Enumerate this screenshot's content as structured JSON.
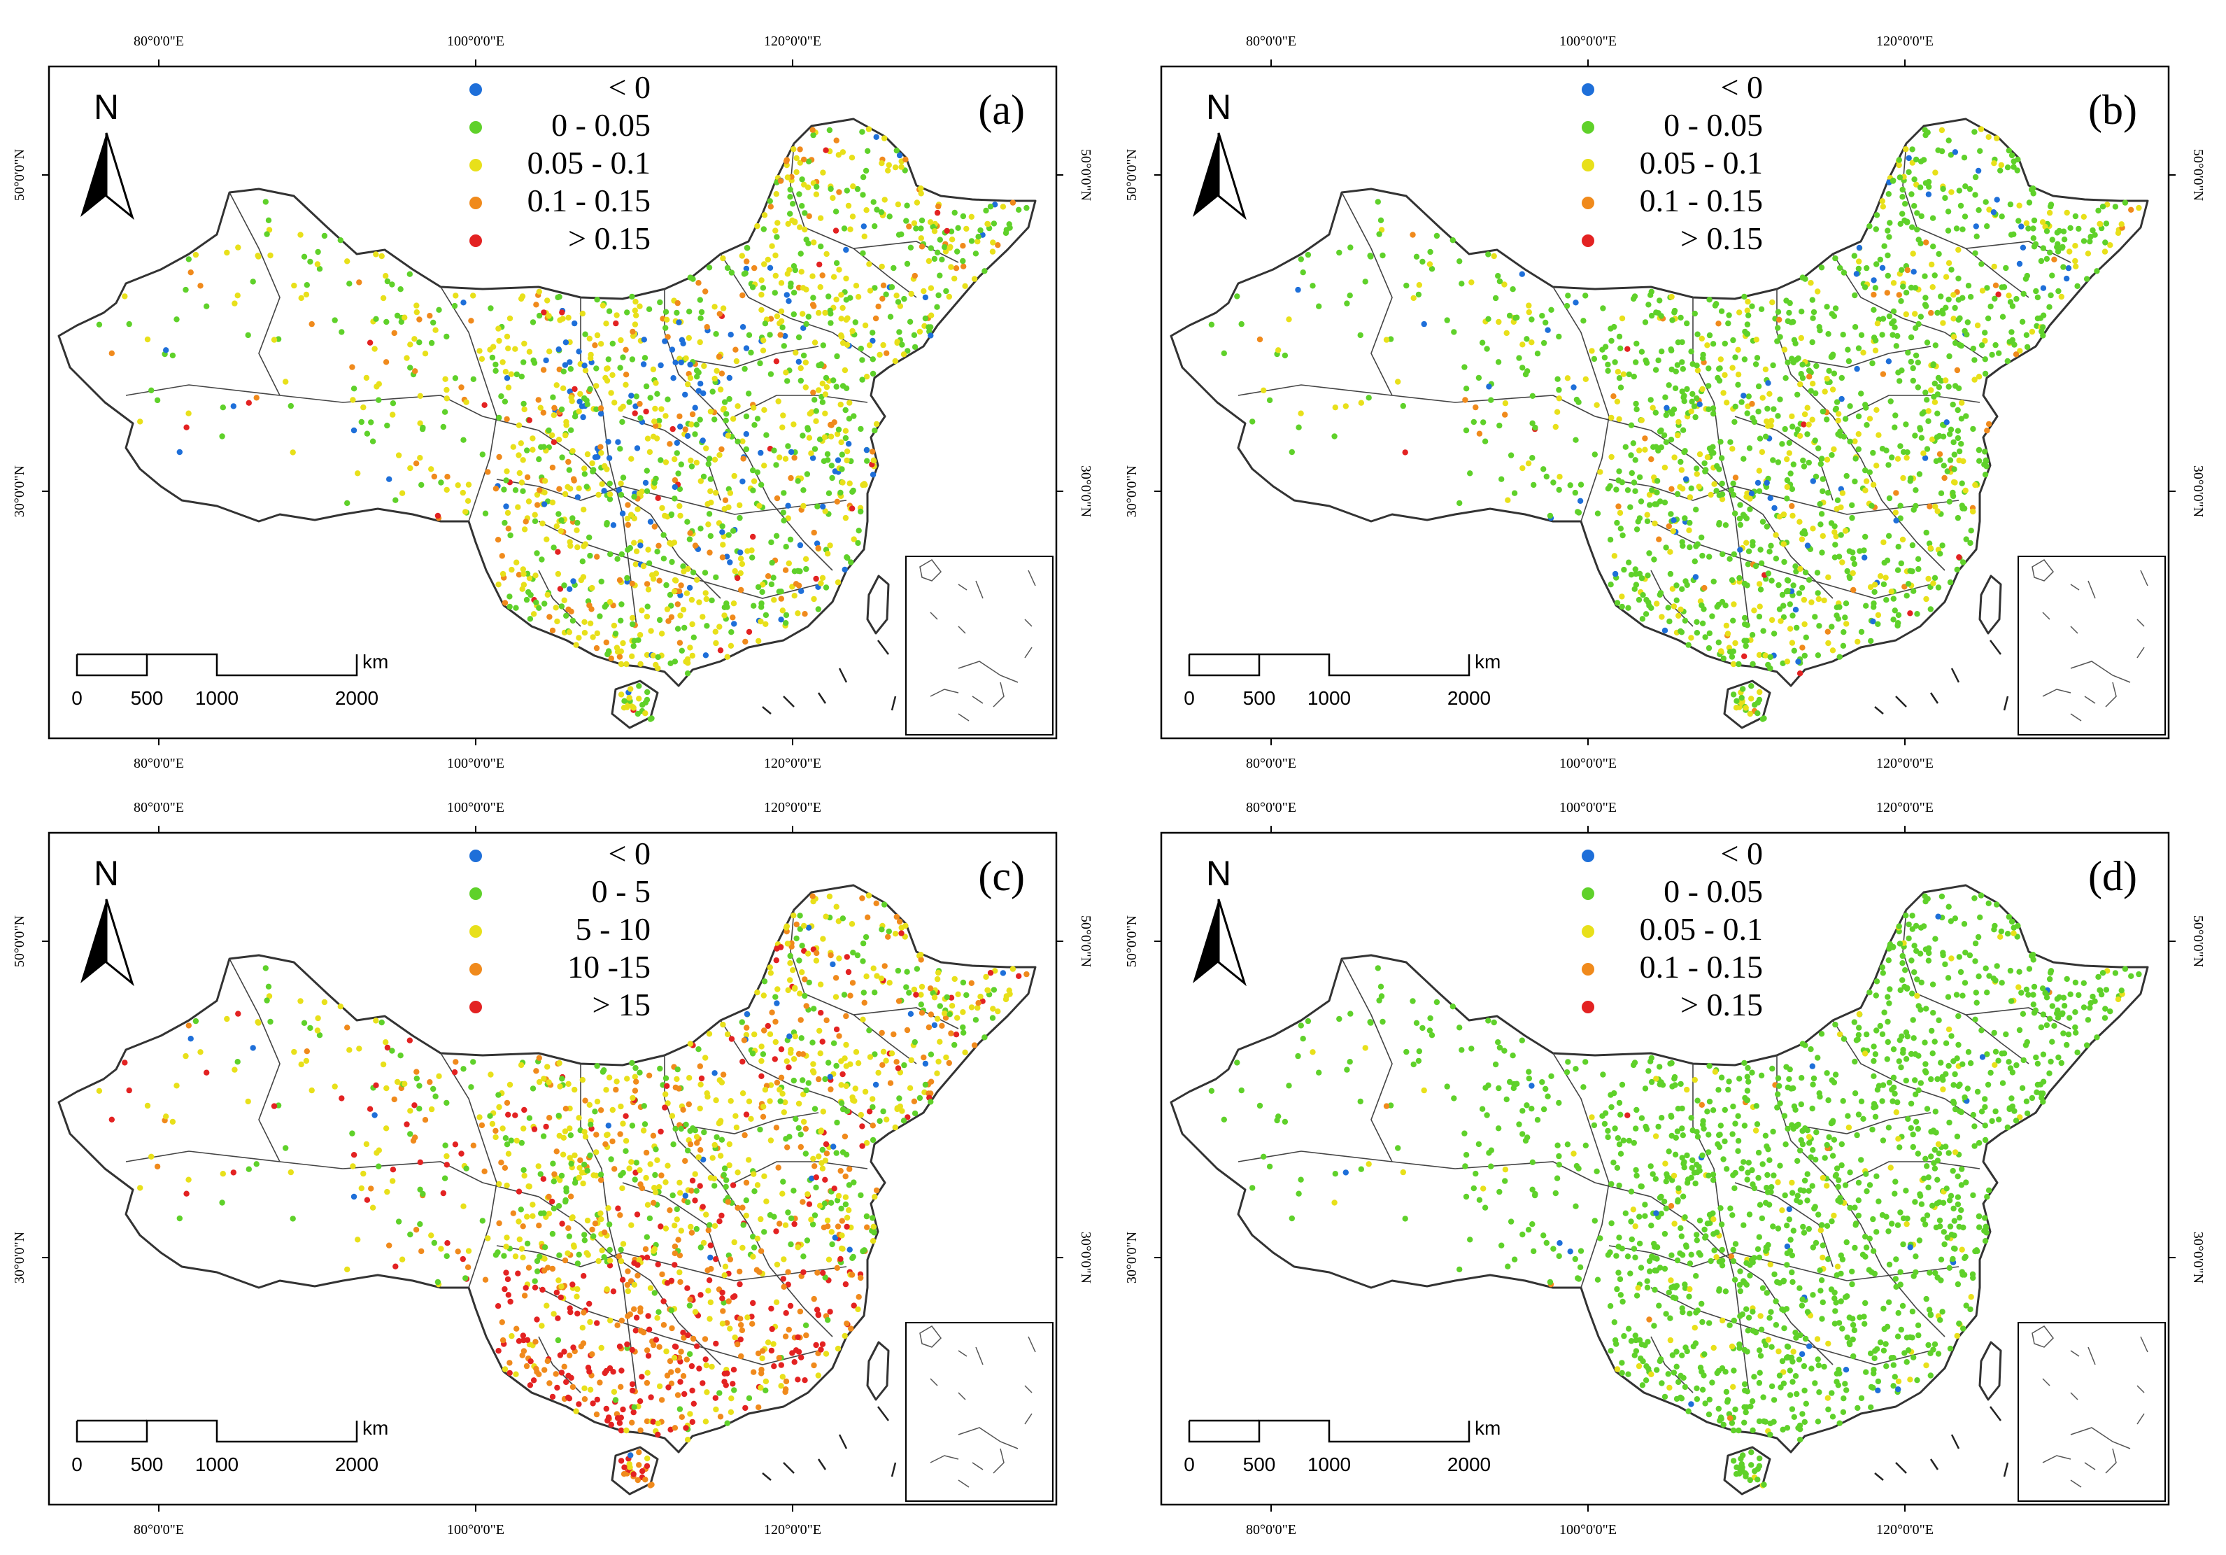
{
  "figure": {
    "lon_labels": [
      "80°0'0\"E",
      "100°0'0\"E",
      "120°0'0\"E"
    ],
    "lat_labels": [
      "50°0'0\"N",
      "30°0'0\"N"
    ],
    "north_label": "N",
    "scale_unit": "km",
    "scale_ticks": [
      "0",
      "500",
      "1000",
      "2000"
    ]
  },
  "colors": {
    "blue": "#1e6fd9",
    "green": "#5fd12a",
    "yellow": "#e8e01a",
    "orange": "#f08a1c",
    "red": "#e32222"
  },
  "panels": [
    {
      "letter": "(a)",
      "legend": [
        "< 0",
        "0 - 0.05",
        "0.05 - 0.1",
        "0.1 - 0.15",
        "> 0.15"
      ],
      "mix": {
        "blue": 0.06,
        "green": 0.38,
        "yellow": 0.42,
        "orange": 0.12,
        "red": 0.02
      }
    },
    {
      "letter": "(b)",
      "legend": [
        "< 0",
        "0 - 0.05",
        "0.05 - 0.1",
        "0.1 - 0.15",
        "> 0.15"
      ],
      "mix": {
        "blue": 0.04,
        "green": 0.68,
        "yellow": 0.24,
        "orange": 0.035,
        "red": 0.005
      }
    },
    {
      "letter": "(c)",
      "legend": [
        "< 0",
        "0 - 5",
        "5 - 10",
        "10 -15",
        "> 15"
      ],
      "mix": {
        "blue": 0.02,
        "green": 0.28,
        "yellow": 0.38,
        "orange": 0.2,
        "red": 0.12
      }
    },
    {
      "letter": "(d)",
      "legend": [
        "< 0",
        "0 - 0.05",
        "0.05 - 0.1",
        "0.1 - 0.15",
        "> 0.15"
      ],
      "mix": {
        "blue": 0.02,
        "green": 0.9,
        "yellow": 0.07,
        "orange": 0.008,
        "red": 0.002
      }
    }
  ]
}
